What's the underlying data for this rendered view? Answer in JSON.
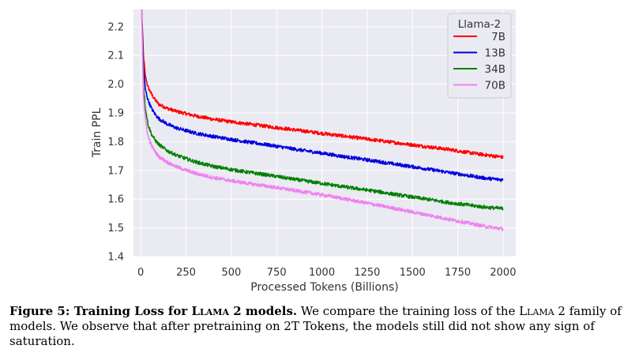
{
  "chart_data": {
    "type": "line",
    "xlabel": "Processed Tokens (Billions)",
    "ylabel": "Train PPL",
    "xlim": [
      -40,
      2070
    ],
    "ylim": [
      1.4,
      2.26
    ],
    "xticks": [
      0,
      250,
      500,
      750,
      1000,
      1250,
      1500,
      1750,
      2000
    ],
    "yticks": [
      1.4,
      1.5,
      1.6,
      1.7,
      1.8,
      1.9,
      2.0,
      2.1,
      2.2
    ],
    "grid": true,
    "background": "#eaeaf2",
    "legend": {
      "title": "Llama-2",
      "placement": "top-right"
    },
    "series": [
      {
        "name": "7B",
        "color": "#ff0000",
        "x": [
          5,
          15,
          25,
          40,
          60,
          80,
          100,
          150,
          200,
          300,
          400,
          500,
          600,
          700,
          800,
          900,
          1000,
          1100,
          1200,
          1300,
          1400,
          1500,
          1600,
          1700,
          1800,
          1900,
          2000
        ],
        "y": [
          2.26,
          2.1,
          2.03,
          1.99,
          1.965,
          1.945,
          1.93,
          1.915,
          1.905,
          1.89,
          1.878,
          1.869,
          1.861,
          1.853,
          1.845,
          1.837,
          1.829,
          1.821,
          1.813,
          1.805,
          1.797,
          1.789,
          1.781,
          1.773,
          1.763,
          1.754,
          1.746
        ]
      },
      {
        "name": "13B",
        "color": "#0000dd",
        "x": [
          5,
          15,
          25,
          40,
          60,
          80,
          100,
          150,
          200,
          300,
          400,
          500,
          600,
          700,
          800,
          900,
          1000,
          1100,
          1200,
          1300,
          1400,
          1500,
          1600,
          1700,
          1800,
          1900,
          2000
        ],
        "y": [
          2.26,
          2.06,
          1.985,
          1.945,
          1.915,
          1.895,
          1.88,
          1.86,
          1.847,
          1.83,
          1.818,
          1.808,
          1.798,
          1.789,
          1.779,
          1.769,
          1.76,
          1.75,
          1.741,
          1.732,
          1.722,
          1.713,
          1.703,
          1.693,
          1.683,
          1.673,
          1.667
        ]
      },
      {
        "name": "34B",
        "color": "#008000",
        "x": [
          5,
          15,
          25,
          40,
          60,
          80,
          100,
          150,
          200,
          300,
          400,
          500,
          600,
          700,
          800,
          900,
          1000,
          1100,
          1200,
          1300,
          1400,
          1500,
          1600,
          1700,
          1800,
          1900,
          2000
        ],
        "y": [
          2.26,
          2.0,
          1.92,
          1.86,
          1.825,
          1.805,
          1.79,
          1.767,
          1.752,
          1.73,
          1.714,
          1.703,
          1.693,
          1.684,
          1.674,
          1.664,
          1.655,
          1.645,
          1.636,
          1.627,
          1.617,
          1.607,
          1.598,
          1.588,
          1.58,
          1.572,
          1.567
        ]
      },
      {
        "name": "70B",
        "color": "#ee82ee",
        "x": [
          5,
          15,
          25,
          40,
          60,
          80,
          100,
          150,
          200,
          300,
          400,
          500,
          600,
          700,
          800,
          900,
          1000,
          1100,
          1200,
          1300,
          1400,
          1500,
          1600,
          1700,
          1800,
          1900,
          2000
        ],
        "y": [
          2.26,
          1.96,
          1.88,
          1.82,
          1.785,
          1.765,
          1.748,
          1.727,
          1.712,
          1.69,
          1.675,
          1.664,
          1.654,
          1.645,
          1.635,
          1.625,
          1.615,
          1.604,
          1.592,
          1.58,
          1.568,
          1.555,
          1.543,
          1.53,
          1.518,
          1.505,
          1.496
        ]
      }
    ]
  },
  "caption": {
    "figure_label": "Figure 5: Training Loss for ",
    "model_name": "Llama 2",
    "label_end": " models.",
    "text_1": " We compare the training loss of the ",
    "text_2": " family of models. We observe that after pretraining on 2T Tokens, the models still did not show any sign of saturation."
  }
}
